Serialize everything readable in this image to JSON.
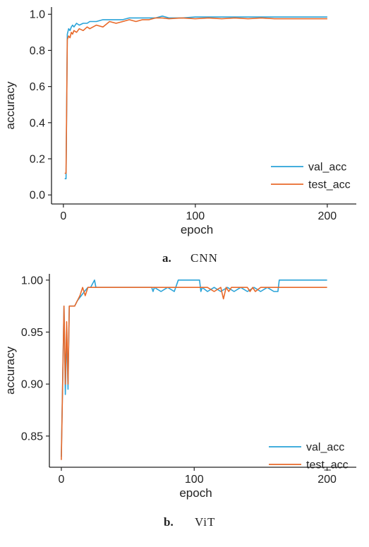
{
  "colors": {
    "val_acc": "#2aa3d8",
    "test_acc": "#e8692a",
    "axis": "#222222"
  },
  "chart_data": [
    {
      "type": "line",
      "caption_letter": "a.",
      "caption_name": "CNN",
      "xlabel": "epoch",
      "ylabel": "accuracy",
      "xlim": [
        -9,
        222
      ],
      "ylim": [
        -0.05,
        1.04
      ],
      "xticks": [
        0,
        100,
        200
      ],
      "yticks": [
        0.0,
        0.2,
        0.4,
        0.6,
        0.8,
        1.0
      ],
      "ytick_labels": [
        "0.0",
        "0.2",
        "0.4",
        "0.6",
        "0.8",
        "1.0"
      ],
      "legend_position": "lower-right",
      "series": [
        {
          "name": "val_acc",
          "color_key": "val_acc",
          "x": [
            1,
            2,
            3,
            4,
            5,
            6,
            7,
            8,
            10,
            12,
            15,
            18,
            20,
            25,
            30,
            35,
            40,
            45,
            50,
            55,
            60,
            65,
            70,
            75,
            80,
            90,
            100,
            110,
            120,
            130,
            140,
            150,
            160,
            170,
            180,
            190,
            200
          ],
          "y": [
            0.09,
            0.09,
            0.89,
            0.92,
            0.91,
            0.93,
            0.94,
            0.93,
            0.95,
            0.94,
            0.95,
            0.95,
            0.96,
            0.96,
            0.97,
            0.97,
            0.97,
            0.97,
            0.98,
            0.98,
            0.98,
            0.98,
            0.98,
            0.99,
            0.98,
            0.98,
            0.985,
            0.985,
            0.985,
            0.985,
            0.985,
            0.985,
            0.985,
            0.985,
            0.985,
            0.985,
            0.985
          ]
        },
        {
          "name": "test_acc",
          "color_key": "test_acc",
          "x": [
            1,
            2,
            3,
            4,
            5,
            6,
            7,
            8,
            10,
            12,
            15,
            18,
            20,
            25,
            30,
            35,
            40,
            45,
            50,
            55,
            60,
            65,
            70,
            75,
            80,
            90,
            100,
            110,
            120,
            130,
            140,
            150,
            160,
            170,
            180,
            190,
            200
          ],
          "y": [
            0.12,
            0.12,
            0.86,
            0.88,
            0.87,
            0.9,
            0.89,
            0.91,
            0.9,
            0.92,
            0.91,
            0.93,
            0.92,
            0.94,
            0.93,
            0.96,
            0.95,
            0.96,
            0.97,
            0.96,
            0.97,
            0.97,
            0.98,
            0.98,
            0.975,
            0.98,
            0.975,
            0.98,
            0.975,
            0.98,
            0.975,
            0.98,
            0.975,
            0.975,
            0.975,
            0.975,
            0.975
          ]
        }
      ]
    },
    {
      "type": "line",
      "caption_letter": "b.",
      "caption_name": "ViT",
      "xlabel": "epoch",
      "ylabel": "accuracy",
      "xlim": [
        -9,
        222
      ],
      "ylim": [
        0.82,
        1.006
      ],
      "xticks": [
        0,
        100,
        200
      ],
      "yticks": [
        0.85,
        0.9,
        0.95,
        1.0
      ],
      "ytick_labels": [
        "0.85",
        "0.90",
        "0.95",
        "1.00"
      ],
      "legend_position": "lower-right",
      "series": [
        {
          "name": "val_acc",
          "color_key": "val_acc",
          "x": [
            0,
            2,
            3,
            4,
            5,
            6,
            7,
            10,
            12,
            15,
            18,
            20,
            22,
            25,
            26,
            30,
            40,
            50,
            60,
            68,
            69,
            70,
            75,
            80,
            85,
            88,
            90,
            100,
            104,
            105,
            106,
            110,
            115,
            120,
            125,
            130,
            135,
            140,
            145,
            150,
            155,
            160,
            163,
            164,
            170,
            180,
            190,
            200
          ],
          "y": [
            0.83,
            0.975,
            0.89,
            0.95,
            0.895,
            0.975,
            0.975,
            0.975,
            0.98,
            0.985,
            0.99,
            0.993,
            0.993,
            1.0,
            0.993,
            0.993,
            0.993,
            0.993,
            0.993,
            0.993,
            0.989,
            0.993,
            0.989,
            0.993,
            0.989,
            1.0,
            1.0,
            1.0,
            1.0,
            0.989,
            0.993,
            0.989,
            0.993,
            0.989,
            0.993,
            0.989,
            0.993,
            0.989,
            0.993,
            0.989,
            0.993,
            0.989,
            0.989,
            1.0,
            1.0,
            1.0,
            1.0,
            1.0
          ]
        },
        {
          "name": "test_acc",
          "color_key": "test_acc",
          "x": [
            0,
            2,
            3,
            4,
            5,
            6,
            7,
            10,
            12,
            14,
            15,
            16,
            18,
            20,
            25,
            30,
            50,
            75,
            100,
            110,
            115,
            120,
            122,
            124,
            126,
            128,
            130,
            140,
            142,
            144,
            146,
            150,
            160,
            170,
            180,
            190,
            200
          ],
          "y": [
            0.827,
            0.975,
            0.9,
            0.96,
            0.9,
            0.975,
            0.975,
            0.975,
            0.98,
            0.985,
            0.989,
            0.993,
            0.985,
            0.993,
            0.993,
            0.993,
            0.993,
            0.993,
            0.993,
            0.993,
            0.989,
            0.993,
            0.982,
            0.993,
            0.989,
            0.993,
            0.993,
            0.993,
            0.989,
            0.993,
            0.989,
            0.993,
            0.993,
            0.993,
            0.993,
            0.993,
            0.993
          ]
        }
      ]
    }
  ]
}
